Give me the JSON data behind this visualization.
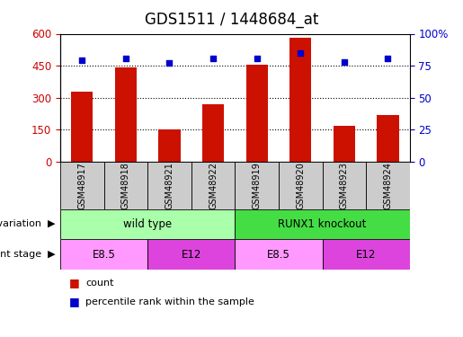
{
  "title": "GDS1511 / 1448684_at",
  "samples": [
    "GSM48917",
    "GSM48918",
    "GSM48921",
    "GSM48922",
    "GSM48919",
    "GSM48920",
    "GSM48923",
    "GSM48924"
  ],
  "counts": [
    330,
    440,
    150,
    270,
    455,
    580,
    170,
    220
  ],
  "percentiles": [
    79,
    81,
    77,
    81,
    81,
    85,
    78,
    81
  ],
  "ylim_left": [
    0,
    600
  ],
  "ylim_right": [
    0,
    100
  ],
  "yticks_left": [
    0,
    150,
    300,
    450,
    600
  ],
  "yticks_right": [
    0,
    25,
    50,
    75,
    100
  ],
  "bar_color": "#cc1100",
  "dot_color": "#0000cc",
  "bar_width": 0.5,
  "genotype_variation": [
    {
      "label": "wild type",
      "start": 0,
      "end": 4,
      "color": "#aaffaa"
    },
    {
      "label": "RUNX1 knockout",
      "start": 4,
      "end": 8,
      "color": "#44dd44"
    }
  ],
  "development_stage": [
    {
      "label": "E8.5",
      "start": 0,
      "end": 2,
      "color": "#ff99ff"
    },
    {
      "label": "E12",
      "start": 2,
      "end": 4,
      "color": "#dd44dd"
    },
    {
      "label": "E8.5",
      "start": 4,
      "end": 6,
      "color": "#ff99ff"
    },
    {
      "label": "E12",
      "start": 6,
      "end": 8,
      "color": "#dd44dd"
    }
  ],
  "legend_count_color": "#cc1100",
  "legend_dot_color": "#0000cc",
  "title_fontsize": 12,
  "axis_color_left": "#cc0000",
  "axis_color_right": "#0000cc",
  "sample_box_color": "#cccccc",
  "row_label_fontsize": 8,
  "tick_fontsize": 8.5
}
